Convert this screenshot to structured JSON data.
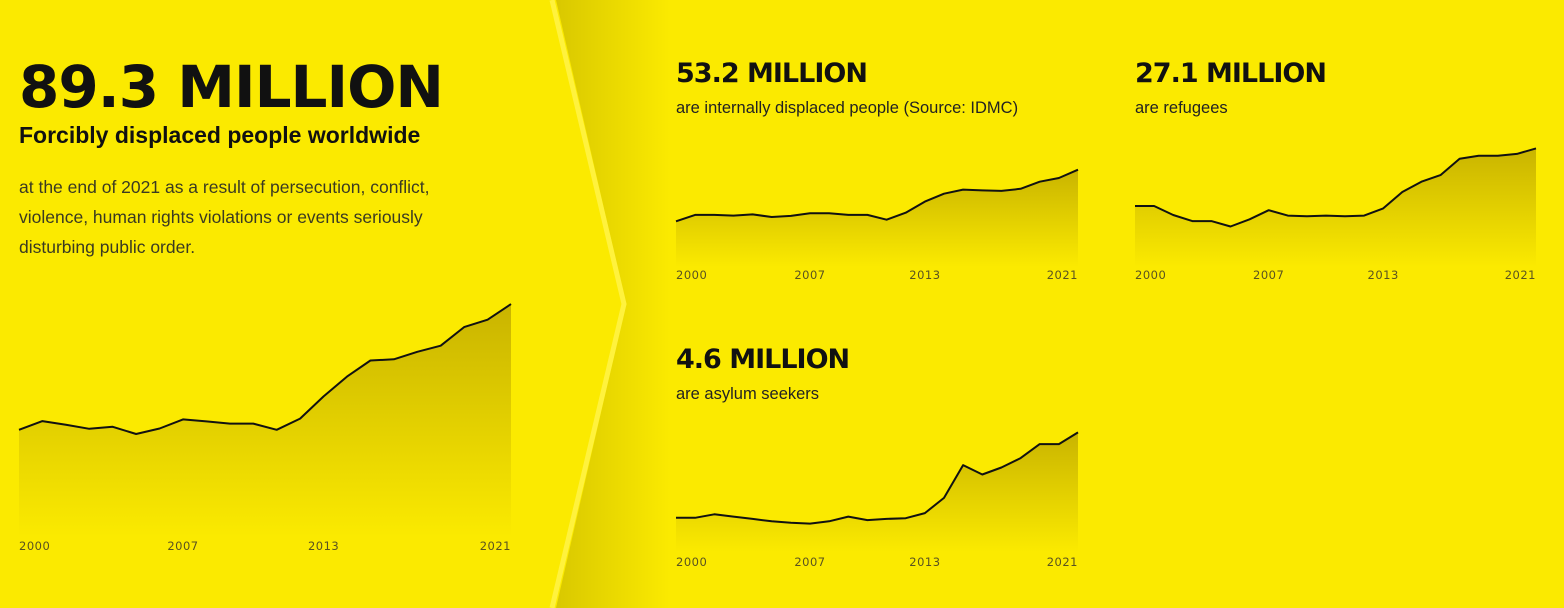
{
  "main": {
    "figure": "89.3 MILLION",
    "subtitle": "Forcibly displaced people worldwide",
    "description": "at the end of 2021 as a result of persecution, conflict, violence, human rights violations or events seriously disturbing public order."
  },
  "stats": [
    {
      "figure": "53.2 MILLION",
      "label": "are internally displaced people (Source: IDMC)"
    },
    {
      "figure": "27.1 MILLION",
      "label": "are refugees"
    },
    {
      "figure": "4.6 MILLION",
      "label": "are asylum seekers"
    }
  ],
  "colors": {
    "background": "#fbea00",
    "area_top": "#c9b400",
    "line": "#111111",
    "chevron": "#ffef3a"
  },
  "chart_data": [
    {
      "type": "area",
      "x": [
        2000,
        2001,
        2002,
        2003,
        2004,
        2005,
        2006,
        2007,
        2008,
        2009,
        2010,
        2011,
        2012,
        2013,
        2014,
        2015,
        2016,
        2017,
        2018,
        2019,
        2020,
        2021
      ],
      "y": [
        38.5,
        42.0,
        40.5,
        38.9,
        39.7,
        36.8,
        39.0,
        42.7,
        41.9,
        41.0,
        41.0,
        38.5,
        43.0,
        52.0,
        60.0,
        66.5,
        67.0,
        70.0,
        72.5,
        80.0,
        83.0,
        89.3
      ],
      "xticks": [
        "2000",
        "2007",
        "2013",
        "2021"
      ],
      "ylim": [
        0,
        95
      ]
    },
    {
      "type": "area",
      "x": [
        2000,
        2001,
        2002,
        2003,
        2004,
        2005,
        2006,
        2007,
        2008,
        2009,
        2010,
        2011,
        2012,
        2013,
        2014,
        2015,
        2016,
        2017,
        2018,
        2019,
        2020,
        2021
      ],
      "y": [
        21.0,
        25.0,
        25.0,
        24.6,
        25.3,
        23.7,
        24.4,
        26.0,
        26.0,
        25.0,
        25.0,
        22.0,
        26.4,
        33.3,
        38.2,
        40.8,
        40.3,
        40.0,
        41.3,
        45.7,
        48.0,
        53.2
      ],
      "xticks": [
        "2000",
        "2007",
        "2013",
        "2021"
      ],
      "ylim": [
        0,
        58
      ]
    },
    {
      "type": "area",
      "x": [
        2000,
        2001,
        2002,
        2003,
        2004,
        2005,
        2006,
        2007,
        2008,
        2009,
        2010,
        2011,
        2012,
        2013,
        2014,
        2015,
        2016,
        2017,
        2018,
        2019,
        2020,
        2021
      ],
      "y": [
        12.1,
        12.1,
        10.6,
        9.6,
        9.6,
        8.7,
        9.9,
        11.4,
        10.5,
        10.4,
        10.5,
        10.4,
        10.5,
        11.7,
        14.4,
        16.1,
        17.2,
        19.9,
        20.4,
        20.4,
        20.7,
        21.6
      ],
      "xticks": [
        "2000",
        "2007",
        "2013",
        "2021"
      ],
      "ylim": [
        4,
        22
      ]
    },
    {
      "type": "area",
      "x": [
        2000,
        2001,
        2002,
        2003,
        2004,
        2005,
        2006,
        2007,
        2008,
        2009,
        2010,
        2011,
        2012,
        2013,
        2014,
        2015,
        2016,
        2017,
        2018,
        2019,
        2020,
        2021
      ],
      "y": [
        0.95,
        0.95,
        1.1,
        1.0,
        0.9,
        0.8,
        0.74,
        0.7,
        0.8,
        1.0,
        0.85,
        0.9,
        0.93,
        1.15,
        1.8,
        3.2,
        2.8,
        3.1,
        3.5,
        4.1,
        4.1,
        4.6
      ],
      "xticks": [
        "2000",
        "2007",
        "2013",
        "2021"
      ],
      "ylim": [
        0,
        5
      ]
    }
  ]
}
